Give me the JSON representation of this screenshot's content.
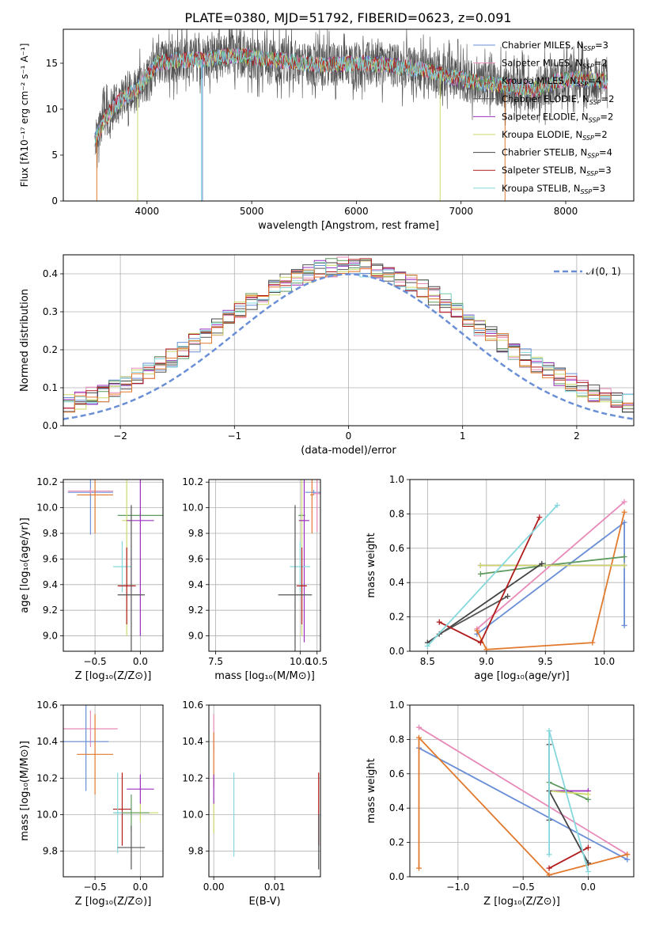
{
  "figure_title": "PLATE=0380, MJD=51792, FIBERID=0623, z=0.091",
  "palette": {
    "c1": "#6a8fd6",
    "c2": "#e27a2e",
    "c3": "#5f9a5f",
    "c4": "#555555",
    "c5": "#9b30c0",
    "c6": "#ccd86a",
    "c7": "#444444",
    "c8": "#b01c1c",
    "c9": "#86d8dc",
    "pink": "#e88ab8"
  },
  "chart_data": [
    {
      "id": "spectrum",
      "type": "line",
      "xlabel": "wavelength [Angstrom, rest frame]",
      "ylabel": "Flux [fλ10⁻¹⁷ erg cm⁻² s⁻¹ A⁻¹]",
      "xlim": [
        3200,
        8650
      ],
      "ylim": [
        0,
        18.7
      ],
      "xticks": [
        4000,
        5000,
        6000,
        7000,
        8000
      ],
      "yticks": [
        0,
        5,
        10,
        15
      ],
      "legend_position": "top-right",
      "series": [
        {
          "name": "Chabrier MILES, N_SSP=3",
          "color": "#6a8fd6"
        },
        {
          "name": "Salpeter MILES, N_SSP=2",
          "color": "#e88ab8"
        },
        {
          "name": "Kroupa MILES, N_SSP=4",
          "color": "#5f9a5f"
        },
        {
          "name": "Chabrier ELODIE, N_SSP=2",
          "color": "#555555"
        },
        {
          "name": "Salpeter ELODIE, N_SSP=2",
          "color": "#9b30c0"
        },
        {
          "name": "Kroupa ELODIE, N_SSP=2",
          "color": "#ccd86a"
        },
        {
          "name": "Chabrier STELIB, N_SSP=4",
          "color": "#444444"
        },
        {
          "name": "Salpeter STELIB, N_SSP=3",
          "color": "#b01c1c"
        },
        {
          "name": "Kroupa STELIB, N_SSP=3",
          "color": "#86d8dc"
        }
      ],
      "continuum": [
        [
          3500,
          6.5
        ],
        [
          3600,
          9
        ],
        [
          3700,
          10.5
        ],
        [
          3800,
          11.5
        ],
        [
          3900,
          12
        ],
        [
          4000,
          13.5
        ],
        [
          4100,
          15
        ],
        [
          4300,
          15.3
        ],
        [
          4500,
          15.4
        ],
        [
          4700,
          15.7
        ],
        [
          4900,
          15.8
        ],
        [
          5100,
          15.5
        ],
        [
          5300,
          15.3
        ],
        [
          5500,
          15.0
        ],
        [
          5700,
          14.8
        ],
        [
          5900,
          14.9
        ],
        [
          6100,
          15.0
        ],
        [
          6300,
          14.8
        ],
        [
          6500,
          14.5
        ],
        [
          6700,
          14.2
        ],
        [
          6900,
          13.5
        ],
        [
          7100,
          13.0
        ],
        [
          7300,
          12.7
        ],
        [
          7500,
          12.4
        ],
        [
          7700,
          12.1
        ],
        [
          7900,
          13.0
        ],
        [
          8100,
          13.3
        ],
        [
          8300,
          13.1
        ],
        [
          8400,
          13.0
        ]
      ]
    },
    {
      "id": "residuals",
      "type": "line",
      "xlabel": "(data-model)/error",
      "ylabel": "Normed distribution",
      "xlim": [
        -2.5,
        2.5
      ],
      "ylim": [
        0,
        0.45
      ],
      "xticks": [
        -2,
        -1,
        0,
        1,
        2
      ],
      "yticks": [
        0.0,
        0.1,
        0.2,
        0.3,
        0.4
      ],
      "legend_position": "top-right",
      "gaussian_label": "𝒩(0, 1)"
    },
    {
      "id": "age_vs_Z",
      "type": "scatter",
      "xlabel": "Z [log₁₀(Z/Z⊙)]",
      "ylabel": "age  [log₁₀(age/yr)]",
      "xlim": [
        -0.85,
        0.25
      ],
      "ylim": [
        8.88,
        10.22
      ],
      "xticks": [
        -0.5,
        0.0
      ],
      "yticks": [
        9.0,
        9.2,
        9.4,
        9.6,
        9.8,
        10.0,
        10.2
      ],
      "points": [
        {
          "x": -0.55,
          "y": 10.12,
          "xerr": 0.25,
          "yerr": 0.33,
          "color": "#6a8fd6"
        },
        {
          "x": -0.55,
          "y": 10.13,
          "xerr": 0.25,
          "yerr": 0.02,
          "color": "#e88ab8"
        },
        {
          "x": -0.5,
          "y": 10.1,
          "xerr": 0.2,
          "yerr": 0.3,
          "color": "#e27a2e"
        },
        {
          "x": 0.0,
          "y": 9.94,
          "xerr": 0.25,
          "yerr": 0.02,
          "color": "#5f9a5f"
        },
        {
          "x": -0.15,
          "y": 9.9,
          "xerr": 0.05,
          "yerr": 0.9,
          "color": "#ccd86a"
        },
        {
          "x": 0.0,
          "y": 9.9,
          "xerr": 0.15,
          "yerr": 0.9,
          "color": "#9b30c0"
        },
        {
          "x": -0.2,
          "y": 9.54,
          "xerr": 0.1,
          "yerr": 0.2,
          "color": "#86d8dc"
        },
        {
          "x": -0.15,
          "y": 9.39,
          "xerr": 0.1,
          "yerr": 0.3,
          "color": "#b01c1c"
        },
        {
          "x": -0.1,
          "y": 9.32,
          "xerr": 0.15,
          "yerr": 0.7,
          "color": "#555555"
        }
      ]
    },
    {
      "id": "age_vs_mass",
      "type": "scatter",
      "xlabel": "mass [log₁₀(M/M⊙)]",
      "ylabel": "",
      "xlim": [
        7.3,
        10.6
      ],
      "ylim": [
        8.88,
        10.22
      ],
      "xticks": [
        7.5,
        10.0,
        10.5
      ],
      "yticks": [
        9.0,
        9.2,
        9.4,
        9.6,
        9.8,
        10.0,
        10.2
      ],
      "points": [
        {
          "x": 10.4,
          "y": 10.12,
          "xerr": 0.25,
          "yerr": 0.02,
          "color": "#6a8fd6"
        },
        {
          "x": 10.5,
          "y": 10.11,
          "xerr": 0.1,
          "yerr": 0.3,
          "color": "#e88ab8"
        },
        {
          "x": 10.35,
          "y": 10.1,
          "xerr": 0.05,
          "yerr": 0.3,
          "color": "#e27a2e"
        },
        {
          "x": 10.05,
          "y": 9.94,
          "xerr": 0.1,
          "yerr": 0.02,
          "color": "#5f9a5f"
        },
        {
          "x": 10.05,
          "y": 9.9,
          "xerr": 0.1,
          "yerr": 0.9,
          "color": "#ccd86a"
        },
        {
          "x": 10.12,
          "y": 9.9,
          "xerr": 0.15,
          "yerr": 0.95,
          "color": "#9b30c0"
        },
        {
          "x": 10.0,
          "y": 9.54,
          "xerr": 0.3,
          "yerr": 0.2,
          "color": "#86d8dc"
        },
        {
          "x": 10.05,
          "y": 9.39,
          "xerr": 0.15,
          "yerr": 0.3,
          "color": "#b01c1c"
        },
        {
          "x": 9.85,
          "y": 9.32,
          "xerr": 0.5,
          "yerr": 0.7,
          "color": "#555555"
        }
      ]
    },
    {
      "id": "mw_vs_age",
      "type": "line",
      "xlabel": "age  [log₁₀(age/yr)]",
      "ylabel": "mass weight",
      "xlim": [
        8.35,
        10.25
      ],
      "ylim": [
        0,
        1
      ],
      "xticks": [
        8.5,
        9.0,
        9.5,
        10.0
      ],
      "yticks": [
        0.0,
        0.2,
        0.4,
        0.6,
        0.8,
        1.0
      ],
      "series": [
        {
          "color": "#6a8fd6",
          "points": [
            [
              8.92,
              0.1
            ],
            [
              10.17,
              0.75
            ],
            [
              10.17,
              0.15
            ]
          ]
        },
        {
          "color": "#e88ab8",
          "points": [
            [
              8.92,
              0.13
            ],
            [
              10.17,
              0.87
            ]
          ]
        },
        {
          "color": "#e27a2e",
          "points": [
            [
              8.92,
              0.12
            ],
            [
              9.0,
              0.01
            ],
            [
              9.9,
              0.05
            ],
            [
              10.17,
              0.81
            ]
          ]
        },
        {
          "color": "#5f9a5f",
          "points": [
            [
              8.95,
              0.45
            ],
            [
              9.5,
              0.5
            ],
            [
              10.17,
              0.55
            ]
          ]
        },
        {
          "color": "#9b30c0",
          "points": [
            [
              8.95,
              0.5
            ],
            [
              10.17,
              0.5
            ]
          ]
        },
        {
          "color": "#ccd86a",
          "points": [
            [
              8.95,
              0.5
            ],
            [
              10.17,
              0.5
            ]
          ]
        },
        {
          "color": "#444444",
          "points": [
            [
              8.5,
              0.05
            ],
            [
              9.47,
              0.51
            ]
          ]
        },
        {
          "color": "#555555",
          "points": [
            [
              8.6,
              0.1
            ],
            [
              9.18,
              0.32
            ]
          ]
        },
        {
          "color": "#b01c1c",
          "points": [
            [
              8.6,
              0.17
            ],
            [
              8.95,
              0.05
            ],
            [
              9.45,
              0.78
            ]
          ]
        },
        {
          "color": "#86d8dc",
          "points": [
            [
              8.5,
              0.03
            ],
            [
              9.6,
              0.85
            ]
          ]
        }
      ]
    },
    {
      "id": "mass_vs_Z",
      "type": "scatter",
      "xlabel": "Z [log₁₀(Z/Z⊙)]",
      "ylabel": "mass [log₁₀(M/M⊙)]",
      "xlim": [
        -0.85,
        0.25
      ],
      "ylim": [
        9.66,
        10.6
      ],
      "xticks": [
        -0.5,
        0.0
      ],
      "yticks": [
        9.8,
        10.0,
        10.2,
        10.4,
        10.6
      ],
      "points": [
        {
          "x": -0.55,
          "y": 10.47,
          "xerr": 0.3,
          "yerr": 0.1,
          "color": "#e88ab8"
        },
        {
          "x": -0.6,
          "y": 10.4,
          "xerr": 0.25,
          "yerr": 0.27,
          "color": "#6a8fd6"
        },
        {
          "x": -0.5,
          "y": 10.33,
          "xerr": 0.2,
          "yerr": 0.22,
          "color": "#e27a2e"
        },
        {
          "x": -0.2,
          "y": 10.03,
          "xerr": 0.1,
          "yerr": 0.2,
          "color": "#b01c1c"
        },
        {
          "x": 0.0,
          "y": 10.01,
          "xerr": 0.2,
          "yerr": 0.05,
          "color": "#ccd86a"
        },
        {
          "x": -0.1,
          "y": 10.01,
          "xerr": 0.2,
          "yerr": 0.1,
          "color": "#5f9a5f"
        },
        {
          "x": 0.0,
          "y": 10.14,
          "xerr": 0.15,
          "yerr": 0.08,
          "color": "#9b30c0"
        },
        {
          "x": -0.25,
          "y": 10.01,
          "xerr": 0.05,
          "yerr": 0.22,
          "color": "#86d8dc"
        },
        {
          "x": -0.1,
          "y": 9.82,
          "xerr": 0.15,
          "yerr": 0.12,
          "color": "#555555"
        }
      ]
    },
    {
      "id": "ebv",
      "type": "scatter",
      "xlabel": "E(B-V)",
      "ylabel": "",
      "xlim": [
        -0.0008,
        0.0175
      ],
      "ylim": [
        9.66,
        10.6
      ],
      "xticks": [
        0.0,
        0.01
      ],
      "tick_labels": [
        "0.00",
        "0.01"
      ],
      "yticks": [
        9.8,
        10.0,
        10.2,
        10.4,
        10.6
      ],
      "points": [
        {
          "x": 0.0,
          "y": 10.45,
          "yerr": 0.1,
          "color": "#e88ab8"
        },
        {
          "x": 0.0,
          "y": 10.3,
          "yerr": 0.15,
          "color": "#e27a2e"
        },
        {
          "x": 0.0,
          "y": 10.0,
          "yerr": 0.1,
          "color": "#ccd86a"
        },
        {
          "x": 0.0,
          "y": 10.14,
          "yerr": 0.08,
          "color": "#9b30c0"
        },
        {
          "x": 0.0033,
          "y": 10.0,
          "yerr": 0.23,
          "color": "#86d8dc"
        },
        {
          "x": 0.0172,
          "y": 10.03,
          "yerr": 0.2,
          "color": "#b01c1c"
        },
        {
          "x": 0.0172,
          "y": 9.85,
          "yerr": 0.15,
          "color": "#555555"
        }
      ]
    },
    {
      "id": "mw_vs_Z",
      "type": "line",
      "xlabel": "Z [log₁₀(Z/Z⊙)]",
      "ylabel": "mass weight",
      "xlim": [
        -1.37,
        0.35
      ],
      "ylim": [
        0,
        1
      ],
      "xticks": [
        -1.0,
        -0.5,
        0.0
      ],
      "yticks": [
        0.0,
        0.2,
        0.4,
        0.6,
        0.8,
        1.0
      ],
      "series": [
        {
          "color": "#6a8fd6",
          "points": [
            [
              -1.3,
              0.75
            ],
            [
              0.3,
              0.1
            ]
          ]
        },
        {
          "color": "#e88ab8",
          "points": [
            [
              -1.3,
              0.87
            ],
            [
              0.3,
              0.13
            ]
          ]
        },
        {
          "color": "#e27a2e",
          "points": [
            [
              -1.3,
              0.05
            ],
            [
              -1.3,
              0.81
            ],
            [
              -0.3,
              0.01
            ],
            [
              0.3,
              0.13
            ]
          ]
        },
        {
          "color": "#5f9a5f",
          "points": [
            [
              -0.3,
              0.55
            ],
            [
              0.0,
              0.45
            ]
          ]
        },
        {
          "color": "#9b30c0",
          "points": [
            [
              -0.3,
              0.5
            ],
            [
              0.0,
              0.5
            ]
          ]
        },
        {
          "color": "#ccd86a",
          "points": [
            [
              -0.3,
              0.5
            ],
            [
              0.0,
              0.48
            ]
          ]
        },
        {
          "color": "#444444",
          "points": [
            [
              -0.3,
              0.33
            ],
            [
              -0.3,
              0.77
            ],
            [
              -0.3,
              0.5
            ],
            [
              0.0,
              0.08
            ]
          ]
        },
        {
          "color": "#b01c1c",
          "points": [
            [
              -0.3,
              0.05
            ],
            [
              0.0,
              0.17
            ]
          ]
        },
        {
          "color": "#86d8dc",
          "points": [
            [
              -0.3,
              0.13
            ],
            [
              -0.3,
              0.85
            ],
            [
              0.0,
              0.03
            ]
          ]
        }
      ]
    }
  ]
}
